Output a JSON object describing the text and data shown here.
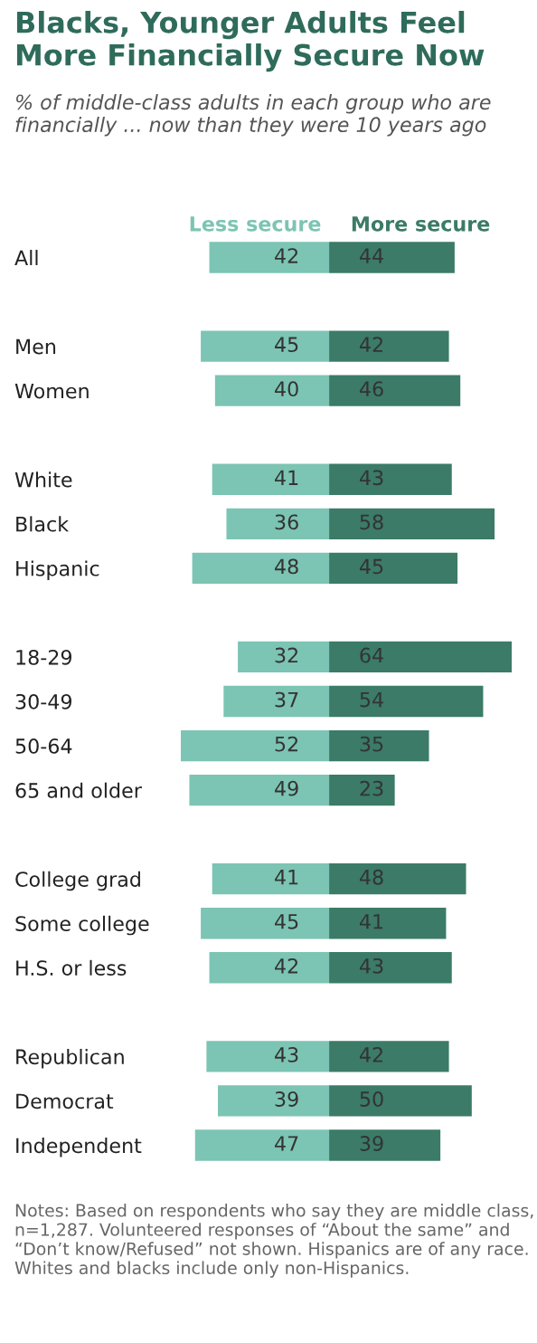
{
  "chart_data": [
    {
      "type": "bar",
      "orientation": "horizontal",
      "title": "Blacks, Younger Adults Feel More Financially Secure Now",
      "subtitle": "% of middle-class adults in each group who are financially ... now than they were 10 years ago",
      "categories": [
        "All",
        null,
        "Men",
        "Women",
        null,
        "White",
        "Black",
        "Hispanic",
        null,
        "18-29",
        "30-49",
        "50-64",
        "65 and older",
        null,
        "College grad",
        "Some college",
        "H.S. or less",
        null,
        "Republican",
        "Democrat",
        "Independent"
      ],
      "series": [
        {
          "name": "Less secure",
          "color": "#7cc4b3",
          "values": [
            42,
            null,
            45,
            40,
            null,
            41,
            36,
            48,
            null,
            32,
            37,
            52,
            49,
            null,
            41,
            45,
            42,
            null,
            43,
            39,
            47
          ]
        }
      ],
      "xlim": [
        52,
        0
      ],
      "tick_labels": "y",
      "data_labels": true,
      "legend": "top",
      "grid": false
    },
    {
      "type": "bar",
      "orientation": "horizontal",
      "categories": [
        null,
        null,
        null,
        null,
        null,
        null,
        null,
        null,
        null,
        null,
        null,
        null,
        null,
        null,
        null,
        null,
        null,
        null,
        null,
        null,
        null
      ],
      "series": [
        {
          "name": "More secure",
          "color": "#3b7b67",
          "values": [
            44,
            null,
            42,
            46,
            null,
            43,
            58,
            45,
            null,
            64,
            54,
            35,
            23,
            null,
            48,
            41,
            43,
            null,
            42,
            50,
            39
          ]
        }
      ],
      "xlim": [
        0,
        64
      ],
      "tick_labels": false,
      "data_labels": true,
      "legend": "top",
      "grid": false,
      "annotations": [
        "Notes: Based on respondents who say they are middle class, n=1,287. Volunteered responses of “About the same” and “Don’t know/Refused” not shown. Hispanics are of any race. Whites and blacks include only non-Hispanics."
      ]
    }
  ]
}
